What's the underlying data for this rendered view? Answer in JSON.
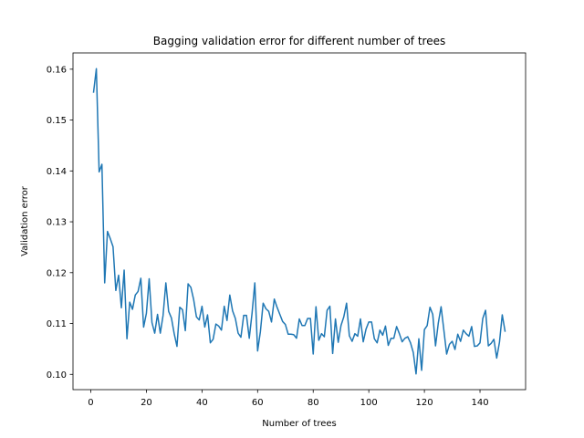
{
  "chart_data": {
    "type": "line",
    "title": "Bagging validation error for different number of trees",
    "xlabel": "Number of trees",
    "ylabel": "Validation error",
    "xlim": [
      -6.4,
      156.4
    ],
    "ylim": [
      0.097,
      0.1632
    ],
    "xticks": [
      0,
      20,
      40,
      60,
      80,
      100,
      120,
      140
    ],
    "yticks": [
      0.1,
      0.11,
      0.12,
      0.13,
      0.14,
      0.15,
      0.16
    ],
    "ytick_labels": [
      "0.10",
      "0.11",
      "0.12",
      "0.13",
      "0.14",
      "0.15",
      "0.16"
    ],
    "grid": false,
    "line_color": "#1f77b4",
    "series": [
      {
        "x": [
          1,
          2,
          3,
          4,
          5,
          6,
          7,
          8,
          9,
          10,
          11,
          12,
          13,
          14,
          15,
          16,
          17,
          18,
          19,
          20,
          21,
          22,
          23,
          24,
          25,
          26,
          27,
          28,
          29,
          30,
          31,
          32,
          33,
          34,
          35,
          36,
          37,
          38,
          39,
          40,
          41,
          42,
          43,
          44,
          45,
          46,
          47,
          48,
          49,
          50,
          51,
          52,
          53,
          54,
          55,
          56,
          57,
          58,
          59,
          60,
          61,
          62,
          63,
          64,
          65,
          66,
          67,
          68,
          69,
          70,
          71,
          72,
          73,
          74,
          75,
          76,
          77,
          78,
          79,
          80,
          81,
          82,
          83,
          84,
          85,
          86,
          87,
          88,
          89,
          90,
          91,
          92,
          93,
          94,
          95,
          96,
          97,
          98,
          99,
          100,
          101,
          102,
          103,
          104,
          105,
          106,
          107,
          108,
          109,
          110,
          111,
          112,
          113,
          114,
          115,
          116,
          117,
          118,
          119,
          120,
          121,
          122,
          123,
          124,
          125,
          126,
          127,
          128,
          129,
          130,
          131,
          132,
          133,
          134,
          135,
          136,
          137,
          138,
          139,
          140,
          141,
          142,
          143,
          144,
          145,
          146,
          147,
          148,
          149
        ],
        "values": [
          0.1555,
          0.1601,
          0.1398,
          0.1413,
          0.118,
          0.1281,
          0.1267,
          0.1251,
          0.1165,
          0.1195,
          0.1131,
          0.1205,
          0.107,
          0.1142,
          0.1128,
          0.1156,
          0.1163,
          0.1189,
          0.1093,
          0.112,
          0.1188,
          0.1102,
          0.1081,
          0.1118,
          0.1081,
          0.1116,
          0.118,
          0.1124,
          0.1111,
          0.108,
          0.1055,
          0.1132,
          0.1127,
          0.1086,
          0.1178,
          0.1171,
          0.1147,
          0.1113,
          0.1107,
          0.1134,
          0.1093,
          0.1117,
          0.1062,
          0.1069,
          0.1099,
          0.1095,
          0.1087,
          0.1134,
          0.1106,
          0.1156,
          0.1125,
          0.111,
          0.1081,
          0.1073,
          0.1116,
          0.1116,
          0.1071,
          0.112,
          0.118,
          0.1046,
          0.1084,
          0.114,
          0.1129,
          0.1124,
          0.1103,
          0.1148,
          0.1132,
          0.1118,
          0.1104,
          0.1098,
          0.1079,
          0.1079,
          0.1078,
          0.1071,
          0.1109,
          0.1096,
          0.1096,
          0.111,
          0.111,
          0.104,
          0.1133,
          0.1067,
          0.108,
          0.1074,
          0.1126,
          0.1134,
          0.1041,
          0.1109,
          0.1063,
          0.1096,
          0.1113,
          0.114,
          0.1076,
          0.1065,
          0.108,
          0.1075,
          0.1109,
          0.1064,
          0.1089,
          0.1103,
          0.1103,
          0.107,
          0.1062,
          0.1087,
          0.1077,
          0.1095,
          0.1057,
          0.1071,
          0.1071,
          0.1094,
          0.108,
          0.1064,
          0.1071,
          0.1074,
          0.1062,
          0.1043,
          0.1001,
          0.107,
          0.1008,
          0.1088,
          0.1096,
          0.1132,
          0.1118,
          0.1056,
          0.1101,
          0.1133,
          0.1087,
          0.104,
          0.1059,
          0.1065,
          0.1049,
          0.1079,
          0.1065,
          0.1087,
          0.108,
          0.1075,
          0.1094,
          0.1055,
          0.1056,
          0.1062,
          0.111,
          0.1126,
          0.1056,
          0.1061,
          0.1069,
          0.1032,
          0.1063,
          0.1117,
          0.1085
        ]
      }
    ]
  }
}
